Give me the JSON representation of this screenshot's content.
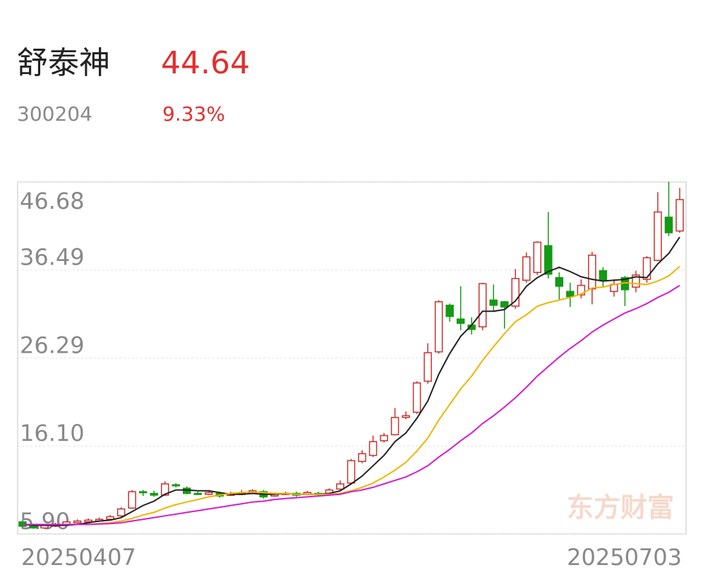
{
  "header": {
    "name": "舒泰神",
    "price": "44.64",
    "code": "300204",
    "change": "9.33%",
    "watermark": "东方财富"
  },
  "chart_data": {
    "type": "candlestick",
    "categories": [
      "20250407",
      null,
      null,
      null,
      null,
      null,
      null,
      null,
      null,
      null,
      null,
      null,
      null,
      null,
      null,
      null,
      null,
      null,
      null,
      null,
      null,
      null,
      null,
      null,
      null,
      null,
      null,
      null,
      null,
      null,
      null,
      null,
      null,
      null,
      null,
      null,
      null,
      null,
      null,
      null,
      null,
      null,
      null,
      null,
      null,
      null,
      null,
      null,
      null,
      null,
      null,
      null,
      null,
      null,
      null,
      null,
      null,
      null,
      null,
      null,
      "20250703"
    ],
    "open": [
      7.3,
      6.9,
      6.6,
      6.8,
      7.0,
      7.2,
      7.3,
      7.4,
      7.6,
      8.0,
      8.9,
      10.8,
      10.6,
      10.4,
      11.6,
      11.2,
      10.6,
      10.5,
      10.6,
      10.4,
      10.5,
      10.6,
      10.8,
      10.3,
      10.5,
      10.6,
      10.5,
      10.6,
      10.6,
      11.1,
      11.8,
      14.3,
      15.0,
      16.7,
      17.4,
      19.4,
      20.0,
      23.6,
      27.0,
      32.4,
      30.8,
      30.1,
      29.9,
      33.0,
      32.8,
      32.3,
      35.3,
      36.2,
      39.3,
      35.6,
      34.0,
      33.6,
      34.3,
      36.4,
      34.0,
      35.6,
      34.5,
      35.4,
      37.6,
      42.6,
      41.0
    ],
    "high": [
      7.5,
      7.0,
      7.0,
      7.2,
      7.4,
      7.6,
      7.7,
      7.8,
      8.1,
      9.0,
      11.0,
      11.0,
      10.9,
      12.0,
      11.8,
      11.4,
      10.8,
      10.9,
      10.8,
      10.8,
      11.0,
      11.1,
      11.0,
      10.7,
      10.8,
      10.8,
      10.9,
      10.8,
      11.2,
      12.1,
      14.6,
      15.6,
      17.3,
      17.6,
      20.5,
      20.1,
      23.6,
      28.0,
      33.0,
      32.6,
      34.6,
      31.0,
      35.0,
      34.8,
      32.9,
      36.6,
      38.5,
      39.8,
      43.2,
      36.2,
      35.0,
      35.4,
      38.6,
      36.8,
      35.4,
      35.8,
      36.4,
      38.1,
      45.5,
      46.7,
      46.0
    ],
    "low": [
      6.7,
      6.5,
      6.5,
      6.7,
      6.9,
      7.1,
      7.2,
      7.3,
      7.5,
      7.9,
      8.8,
      10.3,
      10.2,
      10.3,
      11.3,
      10.5,
      10.4,
      10.4,
      10.1,
      10.3,
      10.4,
      10.5,
      10.0,
      10.2,
      10.4,
      10.2,
      10.4,
      10.3,
      10.5,
      11.0,
      11.7,
      14.1,
      14.8,
      16.5,
      17.3,
      19.2,
      19.8,
      23.3,
      26.8,
      30.5,
      29.5,
      29.0,
      29.5,
      31.8,
      29.7,
      32.0,
      35.0,
      35.9,
      35.5,
      33.0,
      32.2,
      33.2,
      32.5,
      34.5,
      33.4,
      32.3,
      33.9,
      35.0,
      37.5,
      40.4,
      40.8
    ],
    "close": [
      6.8,
      6.6,
      6.9,
      7.0,
      7.3,
      7.4,
      7.5,
      7.6,
      7.9,
      8.8,
      10.8,
      10.7,
      10.4,
      11.7,
      11.5,
      10.6,
      10.5,
      10.7,
      10.3,
      10.5,
      10.6,
      10.9,
      10.2,
      10.5,
      10.6,
      10.4,
      10.7,
      10.5,
      11.0,
      11.7,
      14.4,
      15.2,
      16.6,
      17.3,
      19.4,
      19.6,
      23.4,
      26.9,
      32.8,
      31.1,
      30.3,
      29.6,
      34.9,
      32.4,
      32.2,
      35.5,
      38.0,
      39.7,
      36.0,
      34.6,
      33.4,
      34.7,
      38.2,
      35.3,
      34.8,
      34.2,
      35.9,
      37.9,
      43.2,
      40.8,
      44.64
    ],
    "up_color": "#c8322e",
    "down_color": "#149a14",
    "series": [
      {
        "color": "#222222",
        "values": [
          7.0,
          6.9,
          6.9,
          6.9,
          6.9,
          7.0,
          7.2,
          7.4,
          7.5,
          7.8,
          8.5,
          9.2,
          9.7,
          10.5,
          11.0,
          11.0,
          10.9,
          10.9,
          10.7,
          10.5,
          10.5,
          10.6,
          10.5,
          10.5,
          10.6,
          10.5,
          10.5,
          10.5,
          10.6,
          10.9,
          11.7,
          12.6,
          13.8,
          15.0,
          16.6,
          17.6,
          19.3,
          21.3,
          24.4,
          26.8,
          28.8,
          30.1,
          31.7,
          31.7,
          31.9,
          32.9,
          34.6,
          35.6,
          36.3,
          36.8,
          36.3,
          35.7,
          35.4,
          35.2,
          35.3,
          35.4,
          35.7,
          35.6,
          37.2,
          38.4,
          40.3
        ]
      },
      {
        "color": "#f0b400",
        "values": [
          7.0,
          7.0,
          7.0,
          7.0,
          7.0,
          7.0,
          7.0,
          7.1,
          7.2,
          7.4,
          7.7,
          8.1,
          8.4,
          8.9,
          9.3,
          9.6,
          9.9,
          10.2,
          10.4,
          10.6,
          10.7,
          10.8,
          10.7,
          10.6,
          10.6,
          10.5,
          10.5,
          10.5,
          10.5,
          10.6,
          10.9,
          11.3,
          11.8,
          12.5,
          13.3,
          14.2,
          15.5,
          17.0,
          19.1,
          20.9,
          22.7,
          24.2,
          26.0,
          27.6,
          29.1,
          30.5,
          31.3,
          32.3,
          32.7,
          33.0,
          33.3,
          33.7,
          34.4,
          34.5,
          34.8,
          35.0,
          34.9,
          34.8,
          35.2,
          35.8,
          36.9
        ]
      },
      {
        "color": "#d21ed2",
        "values": [
          7.0,
          7.0,
          7.0,
          7.0,
          7.0,
          7.0,
          7.0,
          7.05,
          7.1,
          7.2,
          7.4,
          7.6,
          7.8,
          8.0,
          8.2,
          8.4,
          8.6,
          8.8,
          9.0,
          9.2,
          9.4,
          9.6,
          9.7,
          9.9,
          10.0,
          10.1,
          10.2,
          10.3,
          10.4,
          10.5,
          10.8,
          11.0,
          11.3,
          11.7,
          12.1,
          12.5,
          13.1,
          13.8,
          14.8,
          15.7,
          16.7,
          17.6,
          18.7,
          19.6,
          20.6,
          21.7,
          22.9,
          24.2,
          25.3,
          26.4,
          27.4,
          28.3,
          29.3,
          30.1,
          30.8,
          31.5,
          32.0,
          32.6,
          33.3,
          33.9,
          34.7
        ]
      }
    ],
    "ylim": [
      5.9,
      46.68
    ],
    "yticks": [
      {
        "value": 5.9,
        "label": "5.90"
      },
      {
        "value": 16.1,
        "label": "16.10"
      },
      26.29,
      36.49,
      46.68
    ],
    "grid": true
  }
}
